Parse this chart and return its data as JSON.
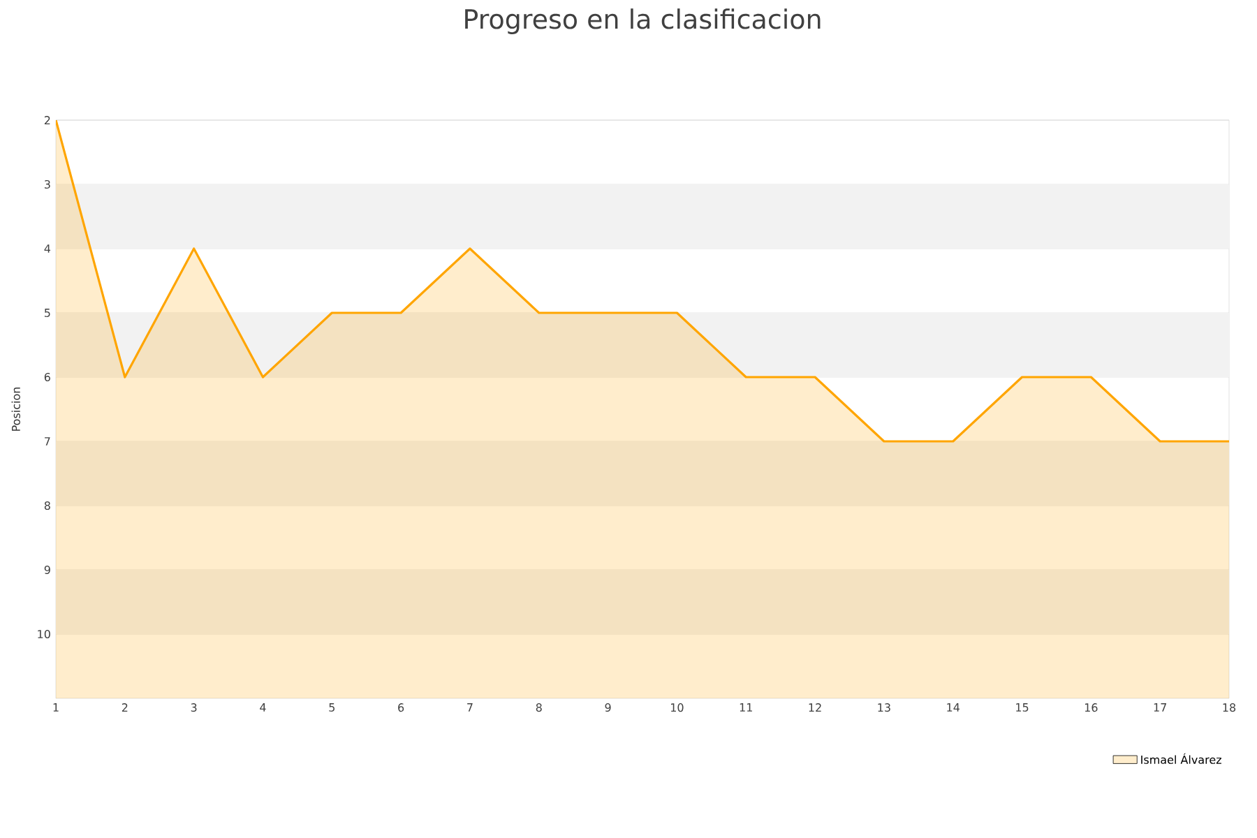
{
  "chart_data": {
    "type": "area",
    "title": "Progreso en la clasificacion",
    "ylabel": "Posicion",
    "x": [
      1,
      2,
      3,
      4,
      5,
      6,
      7,
      8,
      9,
      10,
      11,
      12,
      13,
      14,
      15,
      16,
      17,
      18
    ],
    "series": [
      {
        "name": "Ismael Álvarez",
        "color": "#ffa500",
        "values": [
          2,
          6,
          4,
          6,
          5,
          5,
          4,
          5,
          5,
          5,
          6,
          6,
          7,
          7,
          6,
          6,
          7,
          7
        ]
      }
    ],
    "xlim": [
      1,
      18
    ],
    "xticks": [
      1,
      2,
      3,
      4,
      5,
      6,
      7,
      8,
      9,
      10,
      11,
      12,
      13,
      14,
      15,
      16,
      17,
      18
    ],
    "ylim": [
      11,
      2
    ],
    "yticks": [
      2,
      3,
      4,
      5,
      6,
      7,
      8,
      9,
      10
    ],
    "bands": [
      {
        "axis": "y",
        "from": 3,
        "to": 4,
        "color": "#f2f2f2"
      },
      {
        "axis": "y",
        "from": 5,
        "to": 6,
        "color": "#f2f2f2"
      },
      {
        "axis": "y",
        "from": 7,
        "to": 8,
        "color": "#f2f2f2"
      },
      {
        "axis": "y",
        "from": 9,
        "to": 10,
        "color": "#f2f2f2"
      }
    ],
    "grid": "y",
    "legend": "bottom right",
    "marker": "none",
    "line_style": "solid"
  }
}
